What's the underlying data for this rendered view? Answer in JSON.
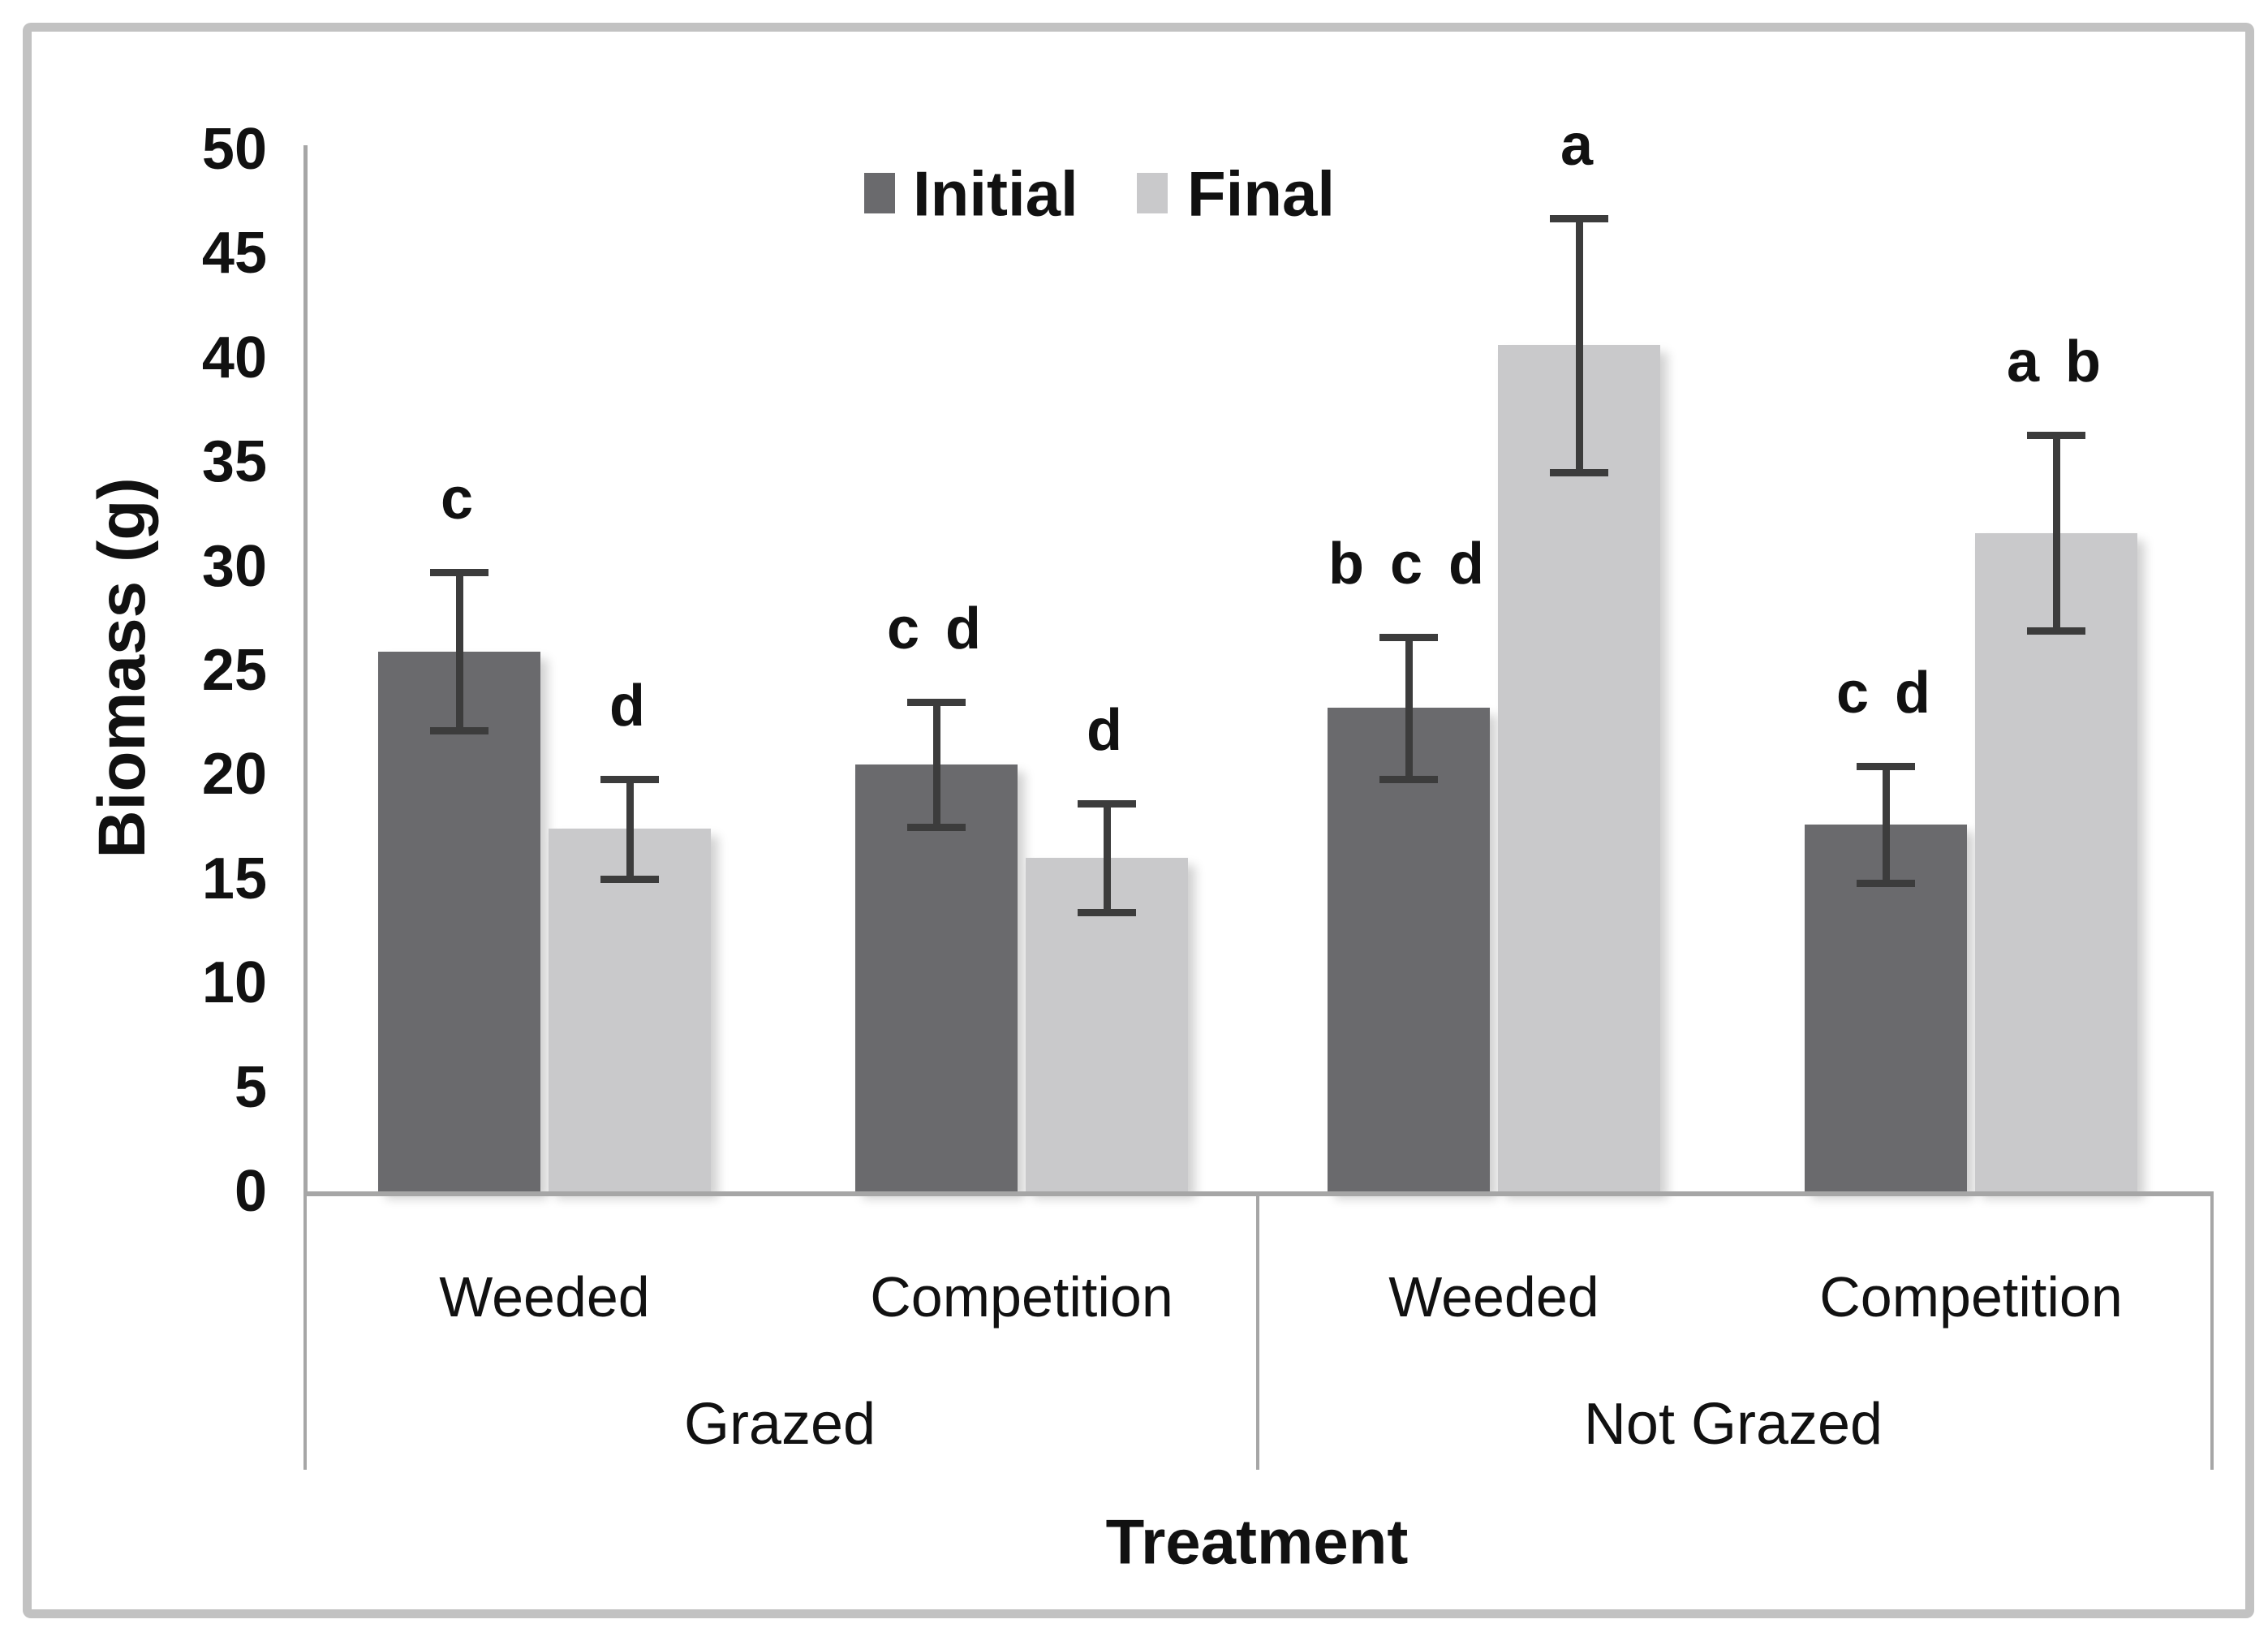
{
  "figure": {
    "background_color": "#ffffff",
    "border_color": "#c2c2c2"
  },
  "chart_data": {
    "type": "bar",
    "title": "",
    "ylabel": "Biomass (g)",
    "xlabel": "Treatment",
    "ylim": [
      0,
      50
    ],
    "ytick_step": 5,
    "yticks": [
      0,
      5,
      10,
      15,
      20,
      25,
      30,
      35,
      40,
      45,
      50
    ],
    "grid": false,
    "legend_position": "top-center",
    "legend": {
      "entries": [
        {
          "label": "Initial",
          "color": "#6a6a6d"
        },
        {
          "label": "Final",
          "color": "#c9c9cb"
        }
      ]
    },
    "group_axis": [
      {
        "label": "Grazed",
        "subgroups": [
          "Weeded",
          "Competition"
        ]
      },
      {
        "label": "Not Grazed",
        "subgroups": [
          "Weeded",
          "Competition"
        ]
      }
    ],
    "categories": [
      "Grazed / Weeded",
      "Grazed / Competition",
      "Not Grazed / Weeded",
      "Not Grazed / Competition"
    ],
    "series": [
      {
        "name": "Initial",
        "color": "#6a6a6d",
        "values": [
          25.9,
          20.5,
          23.2,
          17.6
        ],
        "errors": [
          3.8,
          3.0,
          3.4,
          2.8
        ],
        "sig_letters": [
          "c",
          "c d",
          "b c d",
          "c d"
        ]
      },
      {
        "name": "Final",
        "color": "#c9c9cb",
        "values": [
          17.4,
          16.0,
          40.6,
          31.6
        ],
        "errors": [
          2.4,
          2.6,
          6.1,
          4.7
        ],
        "sig_letters": [
          "d",
          "d",
          "a",
          "a b"
        ]
      }
    ],
    "error_bar_color": "#3c3c3c",
    "axis_color": "#a6a6a6"
  }
}
